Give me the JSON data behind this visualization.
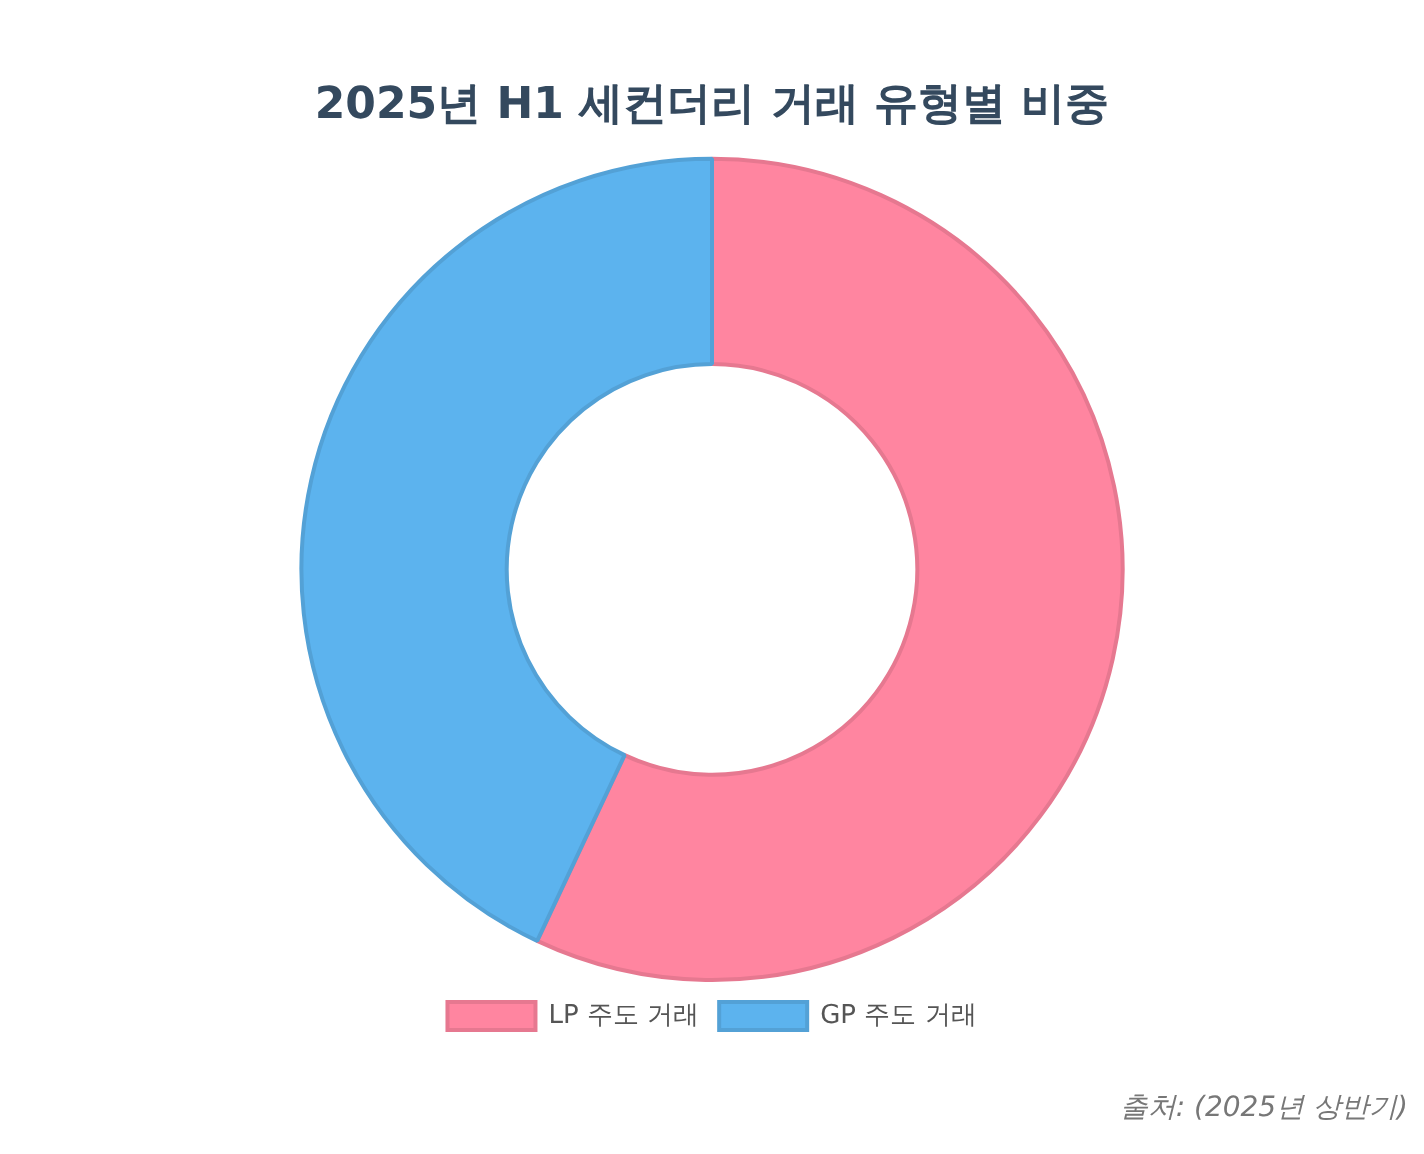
{
  "chart_data": {
    "type": "donut",
    "title": "2025년 H1 세컨더리 거래 유형별 비중",
    "categories": [
      "LP 주도 거래",
      "GP 주도 거래"
    ],
    "values": [
      57,
      43
    ],
    "colors": [
      "#ff85a0",
      "#5cb3ee"
    ],
    "legend": "bottom",
    "annotations": [
      "출처: (2025년 상반기)"
    ]
  }
}
